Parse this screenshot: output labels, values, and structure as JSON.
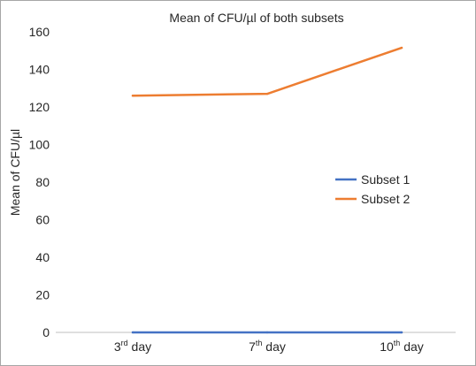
{
  "chart_data": {
    "type": "line",
    "title": "Mean of CFU/µl of both subsets",
    "xlabel": "",
    "ylabel": "Mean of CFU/µl",
    "categories": [
      {
        "base": "3",
        "sup": "rd",
        "rest": " day"
      },
      {
        "base": "7",
        "sup": "th",
        "rest": " day"
      },
      {
        "base": "10",
        "sup": "th",
        "rest": " day"
      }
    ],
    "ylim": [
      0,
      160
    ],
    "yticks": [
      0,
      20,
      40,
      60,
      80,
      100,
      120,
      140,
      160
    ],
    "grid": false,
    "legend_position": "right",
    "series": [
      {
        "name": "Subset 1",
        "color": "#4472c4",
        "values": [
          0,
          0,
          0
        ]
      },
      {
        "name": "Subset 2",
        "color": "#ed7d31",
        "values": [
          126,
          127,
          151.5
        ]
      }
    ]
  }
}
